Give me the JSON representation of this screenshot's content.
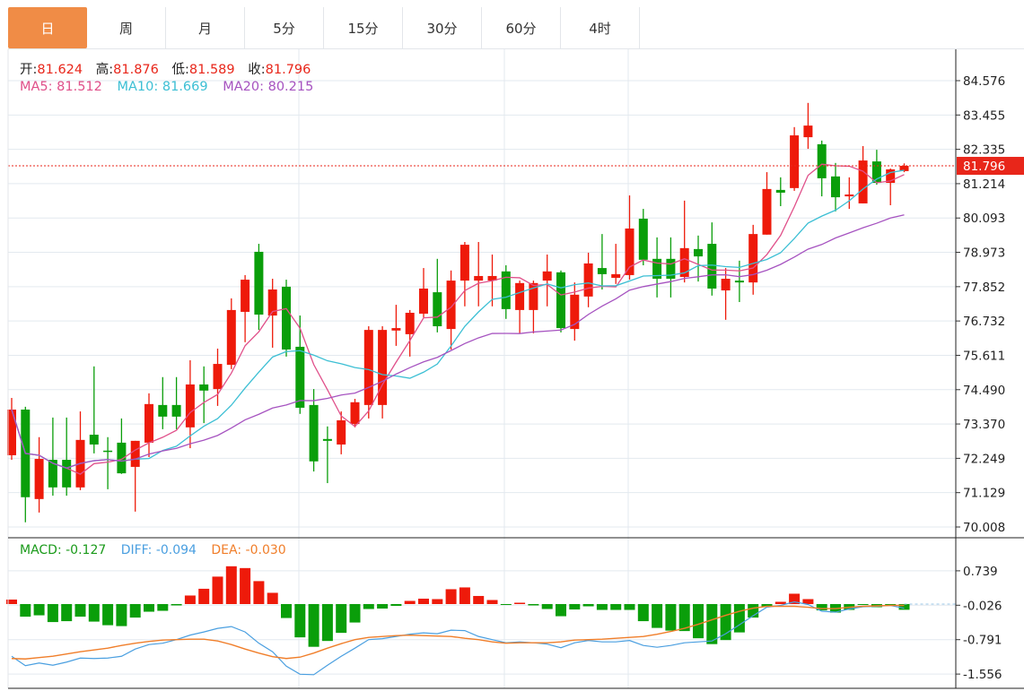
{
  "tabs": [
    {
      "label": "日",
      "active": true
    },
    {
      "label": "周"
    },
    {
      "label": "月"
    },
    {
      "label": "5分"
    },
    {
      "label": "15分"
    },
    {
      "label": "30分"
    },
    {
      "label": "60分"
    },
    {
      "label": "4时"
    }
  ],
  "header": {
    "ohlc": [
      {
        "label": "开:",
        "value": "81.624"
      },
      {
        "label": "高:",
        "value": "81.876"
      },
      {
        "label": "低:",
        "value": "81.589"
      },
      {
        "label": "收:",
        "value": "81.796"
      }
    ],
    "ma": [
      {
        "text": "MA5: 81.512",
        "color": "#e0508a"
      },
      {
        "text": "MA10: 81.669",
        "color": "#3cbfd4"
      },
      {
        "text": "MA20: 80.215",
        "color": "#a653c0"
      }
    ]
  },
  "macd_header": [
    {
      "text": "MACD: -0.127",
      "color": "#1a9a1a"
    },
    {
      "text": "DIFF: -0.094",
      "color": "#4a9fe0"
    },
    {
      "text": "DEA: -0.030",
      "color": "#f07e2a"
    }
  ],
  "colors": {
    "up": "#ee1a0a",
    "down": "#0a9e0a",
    "grid": "#e3e9ef",
    "last_price": "#e8261a"
  },
  "chart_data": [
    {
      "type": "candlestick",
      "ylim": [
        70.008,
        84.576
      ],
      "y_ticks": [
        "84.576",
        "83.455",
        "82.335",
        "81.214",
        "80.093",
        "78.973",
        "77.852",
        "76.732",
        "75.611",
        "74.490",
        "73.370",
        "72.249",
        "71.129",
        "70.008"
      ],
      "last_price": "81.796",
      "grid": true,
      "ohlc_fields": [
        "open",
        "high",
        "low",
        "close"
      ],
      "ohlc": [
        [
          72.35,
          74.22,
          72.2,
          73.84
        ],
        [
          73.84,
          73.93,
          70.16,
          70.98
        ],
        [
          70.92,
          72.94,
          70.48,
          72.23
        ],
        [
          72.2,
          73.58,
          71.03,
          71.3
        ],
        [
          72.2,
          73.58,
          71.03,
          71.3
        ],
        [
          71.3,
          73.78,
          71.21,
          72.85
        ],
        [
          73.02,
          75.25,
          72.41,
          72.7
        ],
        [
          72.5,
          72.94,
          71.24,
          72.47
        ],
        [
          72.76,
          73.55,
          71.74,
          71.76
        ],
        [
          71.97,
          72.82,
          70.51,
          72.82
        ],
        [
          72.76,
          74.37,
          72.29,
          74.02
        ],
        [
          73.99,
          74.9,
          73.2,
          73.61
        ],
        [
          73.99,
          74.9,
          73.2,
          73.61
        ],
        [
          73.26,
          75.45,
          72.58,
          74.66
        ],
        [
          74.66,
          75.25,
          73.4,
          74.46
        ],
        [
          74.51,
          75.83,
          73.96,
          75.33
        ],
        [
          75.3,
          77.47,
          75.16,
          77.09
        ],
        [
          77.03,
          78.23,
          76.04,
          78.08
        ],
        [
          78.99,
          79.25,
          76.44,
          76.94
        ],
        [
          76.91,
          78.11,
          75.86,
          77.76
        ],
        [
          77.85,
          78.08,
          75.57,
          75.8
        ],
        [
          75.89,
          76.91,
          73.7,
          73.9
        ],
        [
          73.99,
          74.51,
          71.82,
          72.15
        ],
        [
          72.88,
          73.29,
          71.44,
          72.82
        ],
        [
          72.7,
          73.78,
          72.38,
          73.49
        ],
        [
          73.37,
          74.19,
          73.26,
          74.08
        ],
        [
          73.99,
          76.56,
          73.55,
          76.44
        ],
        [
          73.99,
          76.56,
          73.55,
          76.44
        ],
        [
          76.42,
          77.26,
          75.92,
          76.5
        ],
        [
          76.3,
          77.09,
          75.57,
          77.0
        ],
        [
          76.97,
          78.46,
          76.85,
          77.79
        ],
        [
          77.67,
          78.76,
          76.36,
          76.56
        ],
        [
          76.47,
          78.38,
          75.8,
          78.05
        ],
        [
          78.05,
          79.31,
          77.21,
          79.22
        ],
        [
          78.05,
          79.31,
          77.21,
          78.2
        ],
        [
          78.05,
          78.9,
          77.21,
          78.2
        ],
        [
          78.35,
          78.55,
          76.8,
          77.12
        ],
        [
          77.09,
          78.05,
          76.33,
          77.97
        ],
        [
          77.09,
          78.05,
          76.33,
          77.97
        ],
        [
          78.05,
          78.9,
          77.21,
          78.35
        ],
        [
          78.32,
          78.38,
          76.36,
          76.5
        ],
        [
          76.47,
          77.99,
          76.09,
          77.59
        ],
        [
          77.53,
          78.96,
          77.18,
          78.61
        ],
        [
          78.46,
          79.57,
          77.76,
          78.26
        ],
        [
          78.14,
          79.25,
          77.94,
          78.26
        ],
        [
          78.23,
          80.83,
          78.08,
          79.75
        ],
        [
          80.07,
          80.39,
          78.55,
          78.73
        ],
        [
          78.76,
          79.46,
          77.5,
          78.11
        ],
        [
          78.76,
          79.46,
          77.5,
          78.11
        ],
        [
          78.17,
          80.66,
          77.99,
          79.11
        ],
        [
          79.08,
          79.52,
          78.02,
          78.84
        ],
        [
          79.25,
          79.95,
          77.56,
          77.79
        ],
        [
          77.73,
          78.46,
          76.77,
          78.11
        ],
        [
          78.05,
          78.7,
          77.35,
          77.99
        ],
        [
          77.99,
          79.87,
          77.59,
          79.57
        ],
        [
          79.55,
          81.59,
          79.55,
          81.04
        ],
        [
          81.01,
          81.42,
          80.48,
          80.92
        ],
        [
          81.07,
          83.06,
          80.98,
          82.79
        ],
        [
          82.73,
          83.85,
          82.35,
          83.11
        ],
        [
          82.5,
          82.62,
          80.8,
          81.39
        ],
        [
          81.45,
          81.89,
          80.31,
          80.77
        ],
        [
          80.8,
          81.42,
          80.39,
          80.86
        ],
        [
          80.57,
          82.44,
          80.57,
          81.97
        ],
        [
          81.94,
          82.32,
          81.18,
          81.24
        ],
        [
          81.24,
          81.71,
          80.51,
          81.68
        ],
        [
          81.624,
          81.876,
          81.589,
          81.796
        ]
      ],
      "moving_averages": [
        {
          "name": "MA5",
          "period": 5,
          "color": "#e0508a"
        },
        {
          "name": "MA10",
          "period": 10,
          "color": "#3cbfd4"
        },
        {
          "name": "MA20",
          "period": 20,
          "color": "#a653c0"
        }
      ]
    },
    {
      "type": "bar+line",
      "ylim": [
        -1.556,
        0.739
      ],
      "y_ticks": [
        "0.739",
        "-0.026",
        "-0.791",
        "-1.556"
      ],
      "macd": [
        0.1,
        -0.28,
        -0.25,
        -0.4,
        -0.38,
        -0.28,
        -0.39,
        -0.47,
        -0.49,
        -0.3,
        -0.17,
        -0.15,
        -0.03,
        0.19,
        0.34,
        0.61,
        0.84,
        0.8,
        0.51,
        0.25,
        -0.31,
        -0.74,
        -0.95,
        -0.82,
        -0.64,
        -0.41,
        -0.11,
        -0.1,
        -0.04,
        0.07,
        0.12,
        0.11,
        0.33,
        0.37,
        0.18,
        0.09,
        -0.01,
        0.03,
        -0.03,
        -0.11,
        -0.27,
        -0.12,
        -0.05,
        -0.13,
        -0.13,
        -0.13,
        -0.38,
        -0.53,
        -0.59,
        -0.6,
        -0.76,
        -0.89,
        -0.8,
        -0.63,
        -0.3,
        -0.05,
        0.05,
        0.23,
        0.11,
        -0.14,
        -0.19,
        -0.13,
        -0.02,
        -0.07,
        -0.01,
        -0.127
      ],
      "diff": [
        -1.16,
        -1.37,
        -1.31,
        -1.36,
        -1.29,
        -1.2,
        -1.21,
        -1.2,
        -1.16,
        -1.0,
        -0.9,
        -0.87,
        -0.79,
        -0.69,
        -0.62,
        -0.54,
        -0.5,
        -0.62,
        -0.87,
        -1.06,
        -1.38,
        -1.56,
        -1.57,
        -1.36,
        -1.16,
        -0.98,
        -0.79,
        -0.77,
        -0.72,
        -0.67,
        -0.64,
        -0.66,
        -0.58,
        -0.59,
        -0.72,
        -0.79,
        -0.86,
        -0.84,
        -0.86,
        -0.89,
        -0.97,
        -0.86,
        -0.81,
        -0.84,
        -0.84,
        -0.81,
        -0.92,
        -0.96,
        -0.92,
        -0.86,
        -0.84,
        -0.82,
        -0.66,
        -0.46,
        -0.26,
        -0.07,
        -0.03,
        0.05,
        -0.01,
        -0.16,
        -0.18,
        -0.11,
        -0.06,
        -0.05,
        -0.03,
        -0.094
      ],
      "dea": [
        -1.21,
        -1.22,
        -1.19,
        -1.16,
        -1.11,
        -1.06,
        -1.02,
        -0.98,
        -0.92,
        -0.87,
        -0.83,
        -0.8,
        -0.79,
        -0.78,
        -0.78,
        -0.82,
        -0.9,
        -1.0,
        -1.09,
        -1.17,
        -1.21,
        -1.18,
        -1.09,
        -0.98,
        -0.88,
        -0.79,
        -0.74,
        -0.72,
        -0.7,
        -0.69,
        -0.7,
        -0.71,
        -0.72,
        -0.76,
        -0.79,
        -0.84,
        -0.87,
        -0.86,
        -0.86,
        -0.86,
        -0.84,
        -0.8,
        -0.79,
        -0.78,
        -0.76,
        -0.74,
        -0.72,
        -0.67,
        -0.61,
        -0.54,
        -0.45,
        -0.35,
        -0.25,
        -0.16,
        -0.09,
        -0.05,
        -0.05,
        -0.05,
        -0.07,
        -0.1,
        -0.1,
        -0.07,
        -0.05,
        -0.04,
        -0.03,
        -0.03
      ],
      "colors": {
        "diff": "#4a9fe0",
        "dea": "#f07e2a"
      }
    }
  ]
}
